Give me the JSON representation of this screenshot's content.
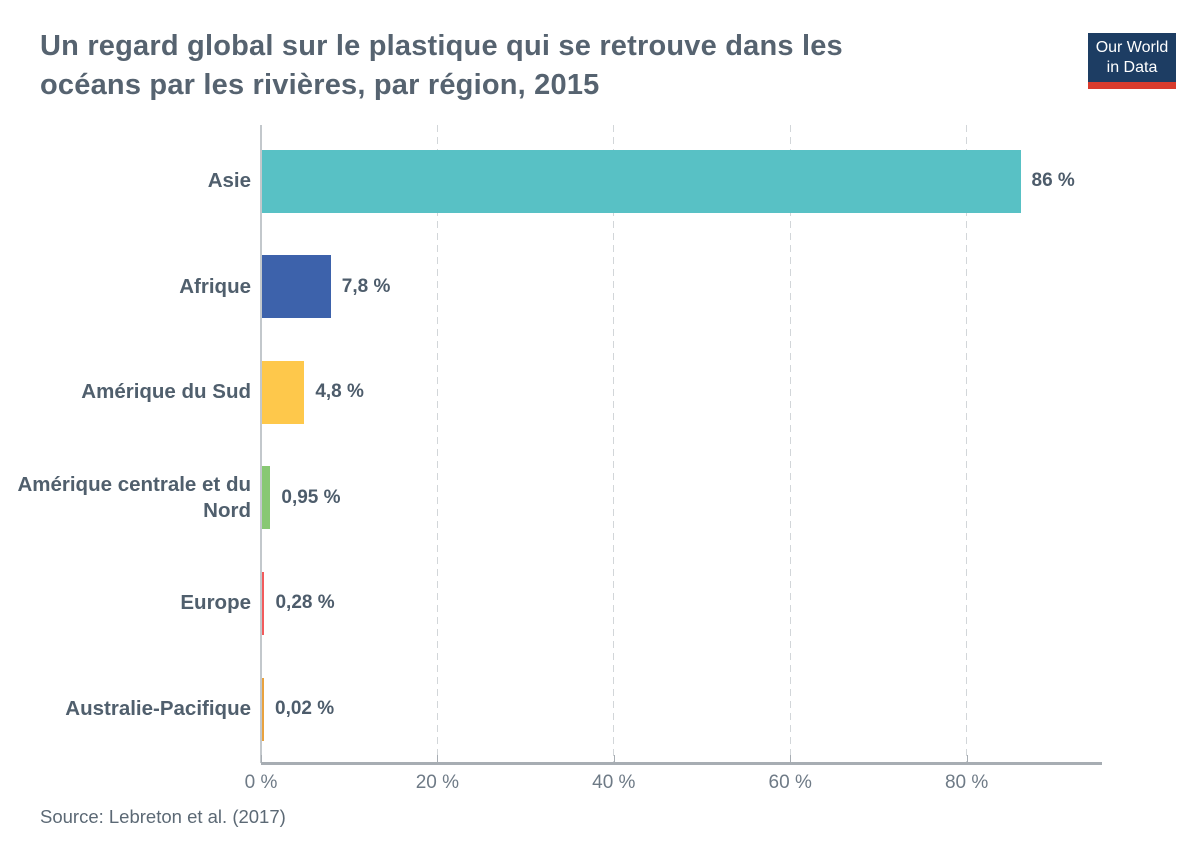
{
  "header": {
    "title_lines": [
      "Un regard global sur le plastique qui se retrouve dans les",
      "océans par les rivières, par région, 2015"
    ],
    "logo_line1": "Our World",
    "logo_line2": "in Data"
  },
  "chart_data": {
    "type": "bar",
    "orientation": "horizontal",
    "title": "Un regard global sur le plastique qui se retrouve dans les océans par les rivières, par région, 2015",
    "categories": [
      "Asie",
      "Afrique",
      "Amérique du Sud",
      "Amérique centrale et du Nord",
      "Europe",
      "Australie-Pacifique"
    ],
    "values": [
      86,
      7.8,
      4.8,
      0.95,
      0.28,
      0.02
    ],
    "value_labels": [
      "86 %",
      "7,8 %",
      "4,8 %",
      "0,95 %",
      "0,28 %",
      "0,02 %"
    ],
    "bar_colors": [
      "#58c1c5",
      "#3d62ab",
      "#fec84b",
      "#88c873",
      "#f25b5c",
      "#e9a23e"
    ],
    "x_ticks": [
      0,
      20,
      40,
      60,
      80
    ],
    "x_tick_labels": [
      "0 %",
      "20 %",
      "40 %",
      "60 %",
      "80 %"
    ],
    "xlim": [
      0,
      95
    ],
    "unit": "%",
    "grid": "dashed-vertical",
    "legend": "none"
  },
  "footer": {
    "source": "Source: Lebreton et al. (2017)"
  },
  "colors": {
    "title_text": "#566370",
    "label_text": "#505f6d",
    "tick_text": "#6e7a86",
    "logo_navy": "#1d3d63",
    "logo_red": "#d93b2d",
    "axis_line": "#a7adb3",
    "gridline": "#d2d6d9"
  }
}
